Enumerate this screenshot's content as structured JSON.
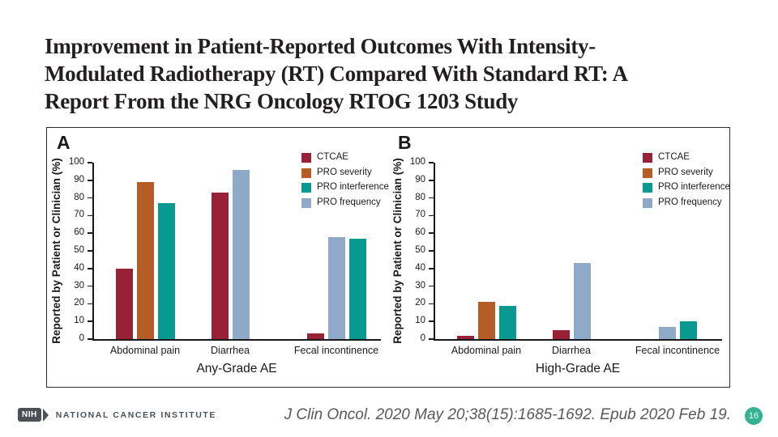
{
  "slide": {
    "title_lines": [
      "Improvement in Patient-Reported Outcomes With Intensity-",
      "Modulated Radiotherapy (RT) Compared With Standard RT: A",
      "Report From the NRG Oncology RTOG 1203 Study"
    ],
    "citation": "J Clin Oncol. 2020 May 20;38(15):1685-1692. Epub 2020 Feb 19.",
    "page_number": "16"
  },
  "footer_logo": {
    "acronym": "NIH",
    "org_name": "NATIONAL CANCER INSTITUTE"
  },
  "colors": {
    "ctcae": "#982037",
    "pro_severity": "#b45d27",
    "pro_interference": "#089a90",
    "pro_frequency": "#8fa9c9",
    "page_badge": "#35b193",
    "axis": "#1a1a1a"
  },
  "chart_data": [
    {
      "type": "bar",
      "panel": "A",
      "xlabel": "Any-Grade AE",
      "ylabel": "Reported by Patient or Clinician (%)",
      "ylim": [
        0,
        100
      ],
      "yticks": [
        0,
        10,
        20,
        30,
        40,
        50,
        60,
        70,
        80,
        90,
        100
      ],
      "legend_position": "top-right",
      "legend": [
        {
          "name": "CTCAE",
          "color": "#982037"
        },
        {
          "name": "PRO severity",
          "color": "#b45d27"
        },
        {
          "name": "PRO interference",
          "color": "#089a90"
        },
        {
          "name": "PRO frequency",
          "color": "#8fa9c9"
        }
      ],
      "groups": [
        {
          "category": "Abdominal pain",
          "bars": [
            {
              "series": "CTCAE",
              "value": 40
            },
            {
              "series": "PRO severity",
              "value": 89
            },
            {
              "series": "PRO interference",
              "value": 77
            }
          ]
        },
        {
          "category": "Diarrhea",
          "bars": [
            {
              "series": "CTCAE",
              "value": 83
            },
            {
              "series": "PRO frequency",
              "value": 96
            }
          ]
        },
        {
          "category": "Fecal incontinence",
          "bars": [
            {
              "series": "CTCAE",
              "value": 3
            },
            {
              "series": "PRO frequency",
              "value": 58
            },
            {
              "series": "PRO interference",
              "value": 57
            }
          ]
        }
      ]
    },
    {
      "type": "bar",
      "panel": "B",
      "xlabel": "High-Grade AE",
      "ylabel": "Reported by Patient or Clinician (%)",
      "ylim": [
        0,
        100
      ],
      "yticks": [
        0,
        10,
        20,
        30,
        40,
        50,
        60,
        70,
        80,
        90,
        100
      ],
      "legend_position": "top-right",
      "legend": [
        {
          "name": "CTCAE",
          "color": "#982037"
        },
        {
          "name": "PRO severity",
          "color": "#b45d27"
        },
        {
          "name": "PRO interference",
          "color": "#089a90"
        },
        {
          "name": "PRO frequency",
          "color": "#8fa9c9"
        }
      ],
      "groups": [
        {
          "category": "Abdominal pain",
          "bars": [
            {
              "series": "CTCAE",
              "value": 2
            },
            {
              "series": "PRO severity",
              "value": 21
            },
            {
              "series": "PRO interference",
              "value": 19
            }
          ]
        },
        {
          "category": "Diarrhea",
          "bars": [
            {
              "series": "CTCAE",
              "value": 5
            },
            {
              "series": "PRO frequency",
              "value": 43
            }
          ]
        },
        {
          "category": "Fecal incontinence",
          "bars": [
            {
              "series": "PRO frequency",
              "value": 7
            },
            {
              "series": "PRO interference",
              "value": 10
            }
          ]
        }
      ]
    }
  ]
}
